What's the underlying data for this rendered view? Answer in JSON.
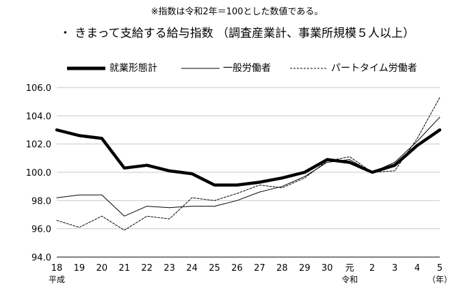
{
  "note": "※指数は令和2年＝100とした数値である。",
  "title": "・ きまって支給する給与指数 （調査産業計、事業所規模５人以上）",
  "chart_data": {
    "type": "line",
    "categories": [
      "18",
      "19",
      "20",
      "21",
      "22",
      "23",
      "24",
      "25",
      "26",
      "27",
      "28",
      "29",
      "30",
      "元",
      "2",
      "3",
      "4",
      "5"
    ],
    "era_labels": [
      {
        "index": 0,
        "text": "平成"
      },
      {
        "index": 13,
        "text": "令和"
      }
    ],
    "x_unit": "（年）",
    "ylim": [
      94.0,
      106.0
    ],
    "yticks": [
      "94.0",
      "96.0",
      "98.0",
      "100.0",
      "102.0",
      "104.0",
      "106.0"
    ],
    "grid": "horizontal",
    "legend_position": "top",
    "series": [
      {
        "name": "就業形態計",
        "style": "thick",
        "values": [
          103.0,
          102.6,
          102.4,
          100.3,
          100.5,
          100.1,
          99.9,
          99.1,
          99.1,
          99.3,
          99.6,
          100.0,
          100.9,
          100.7,
          100.0,
          100.5,
          101.9,
          103.0
        ]
      },
      {
        "name": "一般労働者",
        "style": "thin",
        "values": [
          98.2,
          98.4,
          98.4,
          96.9,
          97.6,
          97.5,
          97.6,
          97.6,
          98.0,
          98.6,
          99.0,
          99.7,
          100.7,
          100.9,
          100.0,
          100.7,
          102.2,
          103.9
        ]
      },
      {
        "name": "パートタイム労働者",
        "style": "dashed",
        "values": [
          96.6,
          96.1,
          96.9,
          95.9,
          96.9,
          96.7,
          98.2,
          98.0,
          98.5,
          99.1,
          98.9,
          99.6,
          100.8,
          101.1,
          100.0,
          100.1,
          102.4,
          105.3
        ]
      }
    ]
  }
}
